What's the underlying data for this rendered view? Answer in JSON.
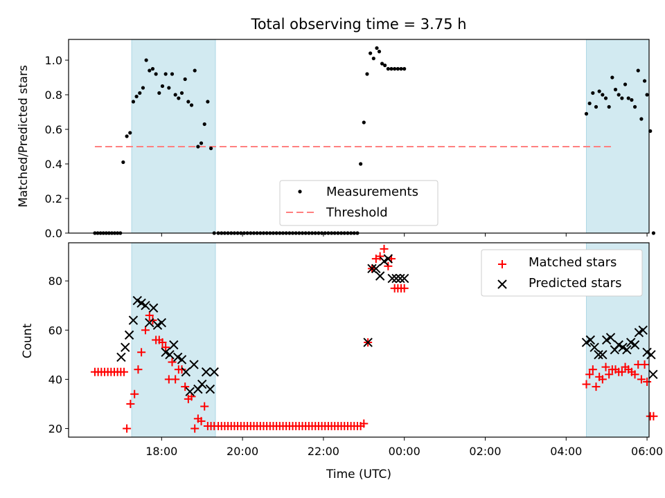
{
  "title": "Total observing time = 3.75 h",
  "xlabel": "Time (UTC)",
  "x_ticks": [
    "18:00",
    "20:00",
    "22:00",
    "00:00",
    "02:00",
    "04:00",
    "06:00"
  ],
  "top": {
    "ylabel": "Matched/Predicted stars",
    "y_ticks": [
      "0.0",
      "0.2",
      "0.4",
      "0.6",
      "0.8",
      "1.0"
    ],
    "legend": [
      "Measurements",
      "Threshold"
    ]
  },
  "bottom": {
    "ylabel": "Count",
    "y_ticks": [
      "20",
      "40",
      "60",
      "80"
    ],
    "legend": [
      "Matched stars",
      "Predicted stars"
    ]
  },
  "colors": {
    "measurement": "#000000",
    "threshold": "#ff7f7f",
    "matched": "#ff0000",
    "predicted": "#000000",
    "shade": "#add8e6"
  },
  "chart_data": [
    {
      "type": "scatter",
      "title": "Total observing time = 3.75 h",
      "xlabel": "",
      "ylabel": "Matched/Predicted stars",
      "x_unit": "hours since 17:00 UTC",
      "xlim": [
        -1.3,
        13.05
      ],
      "ylim": [
        0.0,
        1.12
      ],
      "threshold": 0.5,
      "threshold_x_range": [
        -0.65,
        12.15
      ],
      "shaded_intervals": [
        [
          0.26,
          2.33
        ],
        [
          11.5,
          13.2
        ]
      ],
      "shaded_intervals_hint": [
        [
          18.26,
          20.33
        ],
        [
          4.5,
          6.2
        ]
      ],
      "series": [
        {
          "name": "Measurements",
          "x": [
            -0.65,
            -0.58,
            -0.51,
            -0.44,
            -0.37,
            -0.3,
            -0.23,
            -0.16,
            -0.09,
            -0.02,
            0.05,
            0.14,
            0.22,
            0.3,
            0.38,
            0.46,
            0.54,
            0.62,
            0.7,
            0.78,
            0.86,
            0.94,
            1.02,
            1.1,
            1.18,
            1.26,
            1.34,
            1.42,
            1.5,
            1.58,
            1.66,
            1.74,
            1.82,
            1.9,
            1.98,
            2.06,
            2.14,
            2.22,
            2.3,
            2.4,
            2.48,
            2.56,
            2.64,
            2.72,
            2.8,
            2.88,
            2.96,
            3.04,
            3.12,
            3.2,
            3.28,
            3.36,
            3.44,
            3.52,
            3.6,
            3.68,
            3.76,
            3.84,
            3.92,
            4.0,
            4.08,
            4.16,
            4.24,
            4.32,
            4.4,
            4.48,
            4.56,
            4.64,
            4.72,
            4.8,
            4.88,
            4.96,
            5.04,
            5.12,
            5.2,
            5.28,
            5.36,
            5.44,
            5.52,
            5.6,
            5.68,
            5.76,
            5.84,
            5.92,
            6.0,
            6.08,
            6.16,
            6.24,
            6.32,
            6.38,
            6.45,
            6.52,
            6.6,
            6.68,
            6.76,
            6.84,
            6.92,
            7.0,
            11.5,
            11.58,
            11.66,
            11.74,
            11.82,
            11.9,
            11.98,
            12.06,
            12.14,
            12.22,
            12.3,
            12.38,
            12.46,
            12.54,
            12.62,
            12.7,
            12.78,
            12.86,
            12.94,
            13.0,
            13.08,
            13.16
          ],
          "y": [
            0,
            0,
            0,
            0,
            0,
            0,
            0,
            0,
            0,
            0,
            0.41,
            0.56,
            0.58,
            0.76,
            0.79,
            0.81,
            0.84,
            1.0,
            0.94,
            0.95,
            0.92,
            0.81,
            0.85,
            0.92,
            0.84,
            0.92,
            0.8,
            0.78,
            0.81,
            0.89,
            0.76,
            0.74,
            0.94,
            0.5,
            0.52,
            0.63,
            0.76,
            0.49,
            0,
            0,
            0,
            0,
            0,
            0,
            0,
            0,
            0,
            0,
            0,
            0,
            0,
            0,
            0,
            0,
            0,
            0,
            0,
            0,
            0,
            0,
            0,
            0,
            0,
            0,
            0,
            0,
            0,
            0,
            0,
            0,
            0,
            0,
            0,
            0,
            0,
            0,
            0,
            0,
            0,
            0,
            0,
            0,
            0,
            0.4,
            0.64,
            0.92,
            1.04,
            1.01,
            1.07,
            1.05,
            0.98,
            0.97,
            0.95,
            0.95,
            0.95,
            0.95,
            0.95,
            0.95,
            0.69,
            0.75,
            0.81,
            0.73,
            0.82,
            0.8,
            0.78,
            0.73,
            0.9,
            0.83,
            0.8,
            0.78,
            0.86,
            0.78,
            0.77,
            0.73,
            0.94,
            0.66,
            0.88,
            0.8,
            0.59,
            0.0
          ]
        }
      ]
    },
    {
      "type": "scatter",
      "title": "",
      "xlabel": "Time (UTC)",
      "ylabel": "Count",
      "x_unit": "hours since 17:00 UTC",
      "xlim": [
        -1.3,
        13.05
      ],
      "ylim": [
        16.5,
        95.5
      ],
      "series": [
        {
          "name": "Matched stars",
          "x": [
            -0.65,
            -0.57,
            -0.49,
            -0.41,
            -0.33,
            -0.25,
            -0.17,
            -0.09,
            -0.01,
            0.07,
            0.14,
            0.23,
            0.33,
            0.42,
            0.5,
            0.6,
            0.7,
            0.78,
            0.86,
            0.94,
            1.02,
            1.1,
            1.18,
            1.26,
            1.34,
            1.42,
            1.5,
            1.58,
            1.66,
            1.74,
            1.82,
            1.9,
            1.98,
            2.06,
            2.14,
            2.22,
            2.3,
            2.4,
            2.48,
            2.56,
            2.64,
            2.72,
            2.8,
            2.88,
            2.96,
            3.04,
            3.12,
            3.2,
            3.28,
            3.36,
            3.44,
            3.52,
            3.6,
            3.68,
            3.76,
            3.84,
            3.92,
            4.0,
            4.08,
            4.16,
            4.24,
            4.32,
            4.4,
            4.48,
            4.56,
            4.64,
            4.72,
            4.8,
            4.88,
            4.96,
            5.04,
            5.12,
            5.2,
            5.28,
            5.36,
            5.44,
            5.52,
            5.6,
            5.68,
            5.76,
            5.84,
            5.92,
            6.0,
            6.1,
            6.2,
            6.3,
            6.4,
            6.5,
            6.6,
            6.68,
            6.76,
            6.84,
            6.92,
            7.0,
            11.5,
            11.58,
            11.66,
            11.74,
            11.82,
            11.9,
            11.98,
            12.06,
            12.14,
            12.22,
            12.3,
            12.38,
            12.46,
            12.54,
            12.62,
            12.7,
            12.78,
            12.86,
            12.94,
            13.0,
            13.08,
            13.16
          ],
          "y": [
            43,
            43,
            43,
            43,
            43,
            43,
            43,
            43,
            43,
            43,
            20,
            30,
            34,
            44,
            51,
            60,
            66,
            64,
            56,
            56,
            55,
            53,
            40,
            47,
            40,
            44,
            44,
            37,
            32,
            33,
            20,
            24,
            23,
            29,
            21,
            21,
            21,
            21,
            21,
            21,
            21,
            21,
            21,
            21,
            21,
            21,
            21,
            21,
            21,
            21,
            21,
            21,
            21,
            21,
            21,
            21,
            21,
            21,
            21,
            21,
            21,
            21,
            21,
            21,
            21,
            21,
            21,
            21,
            21,
            21,
            21,
            21,
            21,
            21,
            21,
            21,
            21,
            21,
            21,
            21,
            21,
            21,
            22,
            55,
            85,
            89,
            90,
            93,
            86,
            89,
            77,
            77,
            77,
            77,
            38,
            42,
            44,
            37,
            41,
            40,
            45,
            42,
            44,
            44,
            43,
            43,
            45,
            44,
            43,
            42,
            46,
            40,
            46,
            39,
            25,
            25
          ]
        },
        {
          "name": "Predicted stars",
          "x": [
            0.0,
            0.1,
            0.2,
            0.3,
            0.4,
            0.5,
            0.6,
            0.7,
            0.8,
            0.9,
            1.0,
            1.1,
            1.2,
            1.3,
            1.4,
            1.5,
            1.6,
            1.7,
            1.8,
            1.9,
            2.0,
            2.1,
            2.2,
            2.3,
            6.1,
            6.2,
            6.3,
            6.4,
            6.5,
            6.6,
            6.7,
            6.8,
            6.9,
            7.0,
            11.5,
            11.6,
            11.7,
            11.8,
            11.9,
            12.0,
            12.1,
            12.2,
            12.3,
            12.4,
            12.5,
            12.6,
            12.7,
            12.8,
            12.9,
            13.0,
            13.1,
            13.15
          ],
          "y": [
            49,
            53,
            58,
            64,
            72,
            71,
            70,
            63,
            69,
            62,
            63,
            51,
            50,
            54,
            49,
            48,
            43,
            35,
            46,
            36,
            38,
            43,
            36,
            43,
            55,
            85,
            85,
            82,
            88,
            89,
            81,
            81,
            81,
            81,
            55,
            56,
            53,
            50,
            50,
            56,
            57,
            52,
            54,
            53,
            52,
            55,
            54,
            59,
            60,
            51,
            50,
            42
          ]
        }
      ]
    }
  ]
}
